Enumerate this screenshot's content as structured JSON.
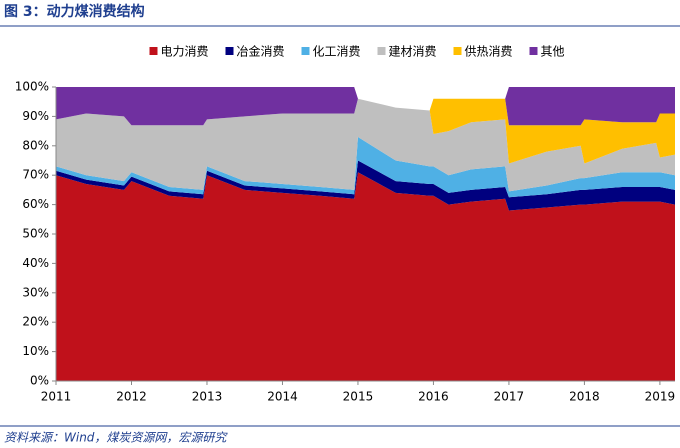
{
  "chart_data": {
    "type": "stacked_area",
    "title": "图 3：动力煤消费结构",
    "source": "资料来源：Wind，煤炭资源网，宏源研究",
    "x": [
      2011.0,
      2011.4,
      2011.9,
      2012.0,
      2012.5,
      2012.95,
      2013.0,
      2013.5,
      2014.0,
      2014.5,
      2014.95,
      2015.0,
      2015.5,
      2015.95,
      2016.0,
      2016.2,
      2016.5,
      2016.95,
      2017.0,
      2017.5,
      2017.95,
      2018.0,
      2018.5,
      2018.95,
      2019.0,
      2019.2
    ],
    "series": [
      {
        "name": "电力消费",
        "color": "#c0111b",
        "values": [
          70,
          67,
          65,
          68,
          63,
          62,
          70,
          65,
          64,
          63,
          62,
          71,
          64,
          63,
          63,
          60,
          61,
          62,
          58,
          59,
          60,
          60,
          61,
          61,
          61,
          60
        ]
      },
      {
        "name": "冶金消费",
        "color": "#00007f",
        "values": [
          1.5,
          1.5,
          1.5,
          1.5,
          1.5,
          1.5,
          1.5,
          1.5,
          1.5,
          1.5,
          1.5,
          4,
          4,
          4,
          4,
          4,
          4,
          4,
          4.5,
          4.5,
          5,
          5,
          5,
          5,
          5,
          5
        ]
      },
      {
        "name": "化工消费",
        "color": "#4fb0e5",
        "values": [
          1.5,
          1.5,
          1.5,
          1.5,
          1.5,
          1.5,
          1.5,
          1.5,
          1.5,
          1.5,
          1.5,
          8,
          7,
          6,
          6,
          6,
          7,
          7,
          2,
          3,
          4,
          4,
          5,
          5,
          5,
          5
        ]
      },
      {
        "name": "建材消费",
        "color": "#bfbfbf",
        "values": [
          16,
          21,
          22,
          16,
          21,
          22,
          16,
          22,
          24,
          25,
          26,
          13,
          18,
          19,
          11,
          15,
          16,
          16,
          9.5,
          11.5,
          11,
          5,
          8,
          10,
          5,
          7
        ]
      },
      {
        "name": "供热消费",
        "color": "#ffbf00",
        "values": [
          0,
          0,
          0,
          0,
          0,
          0,
          0,
          0,
          0,
          0,
          0,
          0,
          0,
          0,
          12,
          11,
          8,
          7,
          13,
          9,
          7,
          15,
          9,
          7,
          15,
          14
        ]
      },
      {
        "name": "其他",
        "color": "#7030a0",
        "values": [
          11,
          9,
          10,
          13,
          13,
          13,
          11,
          10,
          9,
          9,
          9,
          0,
          0,
          0,
          0,
          0,
          0,
          0,
          13,
          13,
          13,
          11,
          12,
          12,
          9,
          9
        ]
      }
    ],
    "xlim": [
      2011,
      2019.2
    ],
    "xticks": [
      2011,
      2012,
      2013,
      2014,
      2015,
      2016,
      2017,
      2018,
      2019
    ],
    "ylim": [
      0,
      100
    ],
    "yticks": [
      {
        "value": 0,
        "label": "0%"
      },
      {
        "value": 10,
        "label": "10%"
      },
      {
        "value": 20,
        "label": "20%"
      },
      {
        "value": 30,
        "label": "30%"
      },
      {
        "value": 40,
        "label": "40%"
      },
      {
        "value": 50,
        "label": "50%"
      },
      {
        "value": 60,
        "label": "60%"
      },
      {
        "value": 70,
        "label": "70%"
      },
      {
        "value": 80,
        "label": "80%"
      },
      {
        "value": 90,
        "label": "90%"
      },
      {
        "value": 100,
        "label": "100%"
      }
    ],
    "legend": "top"
  }
}
